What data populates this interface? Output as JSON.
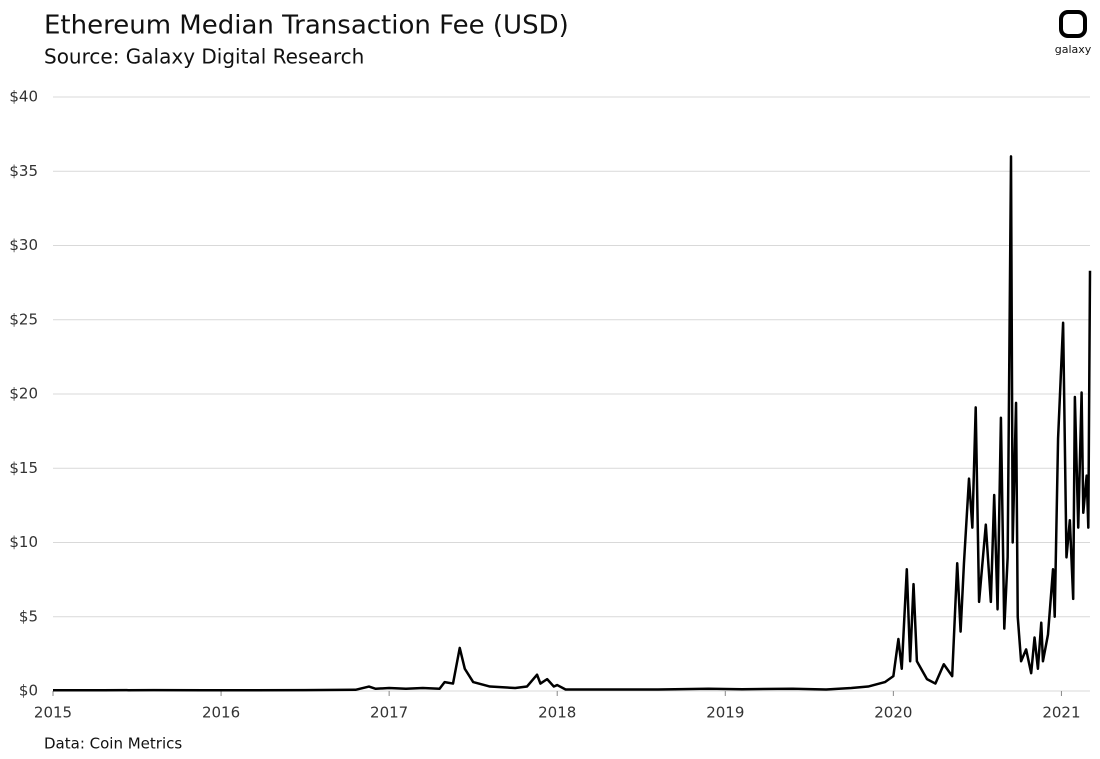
{
  "chart_data": {
    "type": "line",
    "title": "Ethereum Median Transaction Fee (USD)",
    "subtitle": "Source: Galaxy Digital Research",
    "source": "Data: Coin Metrics",
    "logo_text": "galaxy",
    "grid": true,
    "xlim": [
      2015,
      2021.17
    ],
    "xticks": [
      2015,
      2016,
      2017,
      2018,
      2019,
      2020,
      2021
    ],
    "ylim": [
      0,
      40
    ],
    "yticks": [
      {
        "value": 0,
        "label": "$0"
      },
      {
        "value": 5,
        "label": "$5"
      },
      {
        "value": 10,
        "label": "$10"
      },
      {
        "value": 15,
        "label": "$15"
      },
      {
        "value": 20,
        "label": "$20"
      },
      {
        "value": 25,
        "label": "$25"
      },
      {
        "value": 30,
        "label": "$30"
      },
      {
        "value": 35,
        "label": "$35"
      },
      {
        "value": 40,
        "label": "$40"
      }
    ],
    "x": [
      2015,
      2015.3,
      2015.6,
      2015.9,
      2016.2,
      2016.5,
      2016.8,
      2016.88,
      2016.92,
      2017.0,
      2017.1,
      2017.2,
      2017.3,
      2017.33,
      2017.38,
      2017.42,
      2017.45,
      2017.5,
      2017.6,
      2017.75,
      2017.82,
      2017.88,
      2017.9,
      2017.94,
      2017.98,
      2018.0,
      2018.05,
      2018.3,
      2018.6,
      2018.9,
      2019.1,
      2019.4,
      2019.6,
      2019.75,
      2019.85,
      2019.95,
      2020.0,
      2020.03,
      2020.05,
      2020.08,
      2020.1,
      2020.12,
      2020.14,
      2020.2,
      2020.25,
      2020.3,
      2020.35,
      2020.38,
      2020.4,
      2020.42,
      2020.45,
      2020.47,
      2020.49,
      2020.51,
      2020.55,
      2020.58,
      2020.6,
      2020.62,
      2020.64,
      2020.66,
      2020.68,
      2020.7,
      2020.71,
      2020.73,
      2020.74,
      2020.76,
      2020.79,
      2020.82,
      2020.84,
      2020.86,
      2020.88,
      2020.89,
      2020.92,
      2020.95,
      2020.96,
      2020.98,
      2021.01,
      2021.03,
      2021.05,
      2021.07,
      2021.08,
      2021.1,
      2021.12,
      2021.13,
      2021.15,
      2021.16,
      2021.17
    ],
    "series": [
      {
        "name": "Median Transaction Fee",
        "color": "#000000",
        "values": [
          0.05,
          0.05,
          0.06,
          0.05,
          0.05,
          0.06,
          0.08,
          0.3,
          0.15,
          0.2,
          0.15,
          0.2,
          0.15,
          0.6,
          0.5,
          2.9,
          1.5,
          0.6,
          0.3,
          0.2,
          0.3,
          1.1,
          0.5,
          0.8,
          0.3,
          0.4,
          0.1,
          0.1,
          0.1,
          0.15,
          0.12,
          0.15,
          0.1,
          0.2,
          0.3,
          0.6,
          1.0,
          3.5,
          1.5,
          8.2,
          2.0,
          7.2,
          2.0,
          0.8,
          0.5,
          1.8,
          1.0,
          8.6,
          4.0,
          8.6,
          14.3,
          11,
          19.1,
          6,
          11.2,
          6,
          13.2,
          5.5,
          18.4,
          4.2,
          9,
          36,
          10,
          19.4,
          5,
          2,
          2.8,
          1.2,
          3.6,
          1.5,
          4.6,
          2,
          3.8,
          8.2,
          5,
          17,
          24.8,
          9,
          11.5,
          6.2,
          19.8,
          11,
          20.1,
          12,
          14.5,
          11,
          28.3
        ]
      }
    ]
  }
}
